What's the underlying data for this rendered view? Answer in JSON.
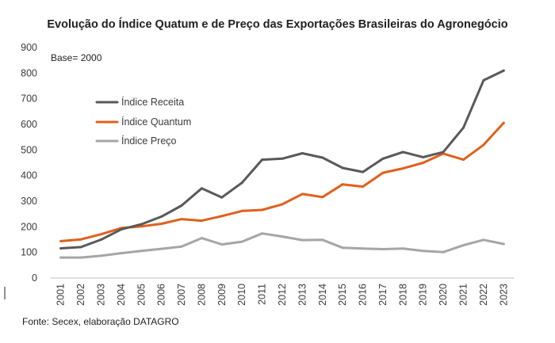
{
  "chart_data": {
    "type": "line",
    "title": "Evolução do Índice Quatum e de Preço das Exportações Brasileiras do Agronegócio",
    "note": "Base= 2000",
    "source": "Fonte: Secex, elaboração DATAGRO",
    "xlabel": "",
    "ylabel": "",
    "ylim": [
      0,
      900
    ],
    "yticks": [
      0,
      100,
      200,
      300,
      400,
      500,
      600,
      700,
      800,
      900
    ],
    "categories": [
      "2001",
      "2002",
      "2003",
      "2004",
      "2005",
      "2006",
      "2007",
      "2008",
      "2009",
      "2010",
      "2011",
      "2012",
      "2013",
      "2014",
      "2015",
      "2016",
      "2017",
      "2018",
      "2019",
      "2020",
      "2021",
      "2022",
      "2023"
    ],
    "grid": false,
    "legend_position": "upper-left",
    "series": [
      {
        "name": "Índice Receita",
        "color": "#595959",
        "values": [
          116,
          121,
          150,
          190,
          210,
          240,
          283,
          350,
          315,
          372,
          462,
          466,
          487,
          470,
          430,
          414,
          466,
          492,
          472,
          492,
          587,
          772,
          810
        ]
      },
      {
        "name": "Índice Quantum",
        "color": "#e0601c",
        "values": [
          144,
          151,
          171,
          195,
          202,
          212,
          230,
          224,
          242,
          262,
          266,
          288,
          328,
          316,
          366,
          357,
          411,
          428,
          450,
          486,
          462,
          520,
          606
        ]
      },
      {
        "name": "Índice Preço",
        "color": "#a6a6a6",
        "values": [
          80,
          80,
          87,
          97,
          106,
          114,
          123,
          156,
          131,
          142,
          174,
          162,
          148,
          149,
          118,
          115,
          113,
          115,
          106,
          101,
          128,
          149,
          133
        ]
      }
    ]
  }
}
